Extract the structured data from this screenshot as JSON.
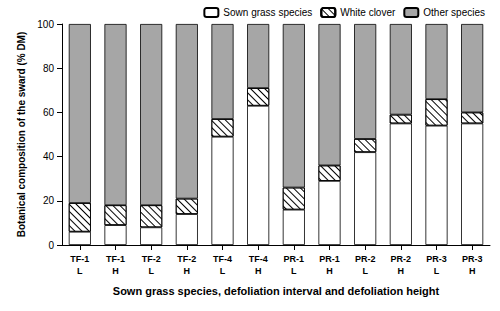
{
  "chart_data": {
    "type": "bar",
    "stacked": true,
    "y_label": "Botanical composition of the sward (% DM)",
    "x_label": "Sown grass species, defoliation interval and defoliation height",
    "categories": [
      "TF-1\nL",
      "TF-1\nH",
      "TF-2\nL",
      "TF-2\nH",
      "TF-4\nL",
      "TF-4\nH",
      "PR-1\nL",
      "PR-1\nH",
      "PR-2\nL",
      "PR-2\nH",
      "PR-3\nL",
      "PR-3\nH"
    ],
    "series": [
      {
        "name": "Sown grass species",
        "color": "#ffffff",
        "values": [
          6,
          9,
          8,
          14,
          49,
          63,
          16,
          29,
          42,
          55,
          54,
          55
        ]
      },
      {
        "name": "White clover",
        "color": "#ffffff",
        "values": [
          13,
          9,
          10,
          7,
          8,
          8,
          10,
          7,
          6,
          4,
          12,
          5
        ]
      },
      {
        "name": "Other species",
        "color": "#a6a6a6",
        "values": [
          81,
          82,
          82,
          79,
          43,
          29,
          74,
          64,
          52,
          41,
          34,
          40
        ]
      }
    ],
    "ylim": [
      0,
      100
    ],
    "yticks": [
      0,
      20,
      40,
      60,
      80,
      100
    ],
    "legend": "upper right",
    "grid": false
  }
}
